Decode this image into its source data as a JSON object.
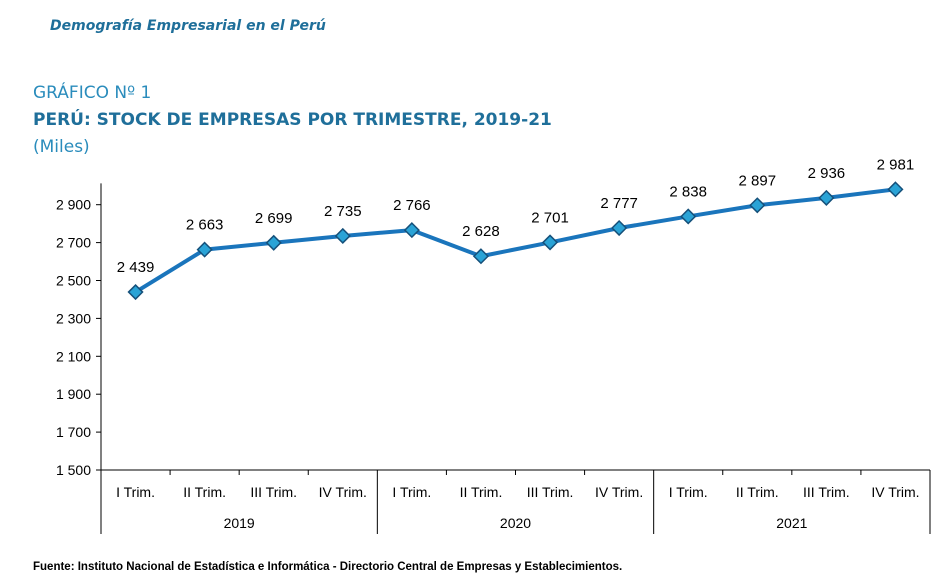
{
  "header": {
    "text": "Demografía Empresarial en el Perú"
  },
  "figure": {
    "number": "GRÁFICO Nº 1",
    "title": "PERÚ: STOCK DE EMPRESAS POR TRIMESTRE, 2019-21",
    "unit": "(Miles)"
  },
  "source": "Fuente: Instituto Nacional de Estadística e Informática - Directorio Central de Empresas y Establecimientos.",
  "chart_data": {
    "type": "line",
    "title": "PERÚ: STOCK DE EMPRESAS POR TRIMESTRE, 2019-21",
    "ylabel": "(Miles)",
    "ylim": [
      1500,
      2981
    ],
    "yticks": [
      1500,
      1700,
      1900,
      2100,
      2300,
      2500,
      2700,
      2900
    ],
    "ytick_labels": [
      "1 500",
      "1 700",
      "1 900",
      "2 100",
      "2 300",
      "2 500",
      "2 700",
      "2 900"
    ],
    "categories": [
      "I Trim.",
      "II Trim.",
      "III Trim.",
      "IV Trim.",
      "I Trim.",
      "II Trim.",
      "III Trim.",
      "IV Trim.",
      "I Trim.",
      "II Trim.",
      "III Trim.",
      "IV Trim."
    ],
    "groups": [
      {
        "label": "2019",
        "count": 4
      },
      {
        "label": "2020",
        "count": 4
      },
      {
        "label": "2021",
        "count": 4
      }
    ],
    "series": [
      {
        "values": [
          2439,
          2663,
          2699,
          2735,
          2766,
          2628,
          2701,
          2777,
          2838,
          2897,
          2936,
          2981
        ],
        "data_labels": [
          "2 439",
          "2 663",
          "2 699",
          "2 735",
          "2 766",
          "2 628",
          "2 701",
          "2 777",
          "2 838",
          "2 897",
          "2 936",
          "2 981"
        ]
      }
    ],
    "colors": {
      "line": "#1a75bc",
      "marker_fill": "#2aa3d6",
      "marker_edge": "#15507a"
    },
    "grid": false,
    "legend": "none"
  }
}
